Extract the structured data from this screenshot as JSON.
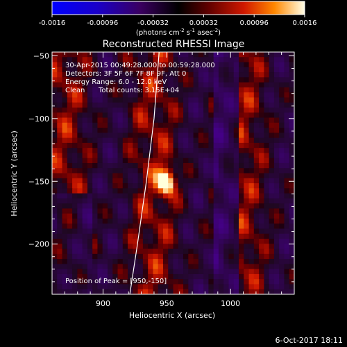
{
  "chart_data": {
    "type": "heatmap",
    "title": "Reconstructed RHESSI Image",
    "xlabel": "Heliocentric X (arcsec)",
    "ylabel": "Heliocentric Y (arcsec)",
    "xlim": [
      860,
      1050
    ],
    "ylim": [
      -240,
      -47
    ],
    "x_ticks": [
      900,
      950,
      1000
    ],
    "y_ticks": [
      -50,
      -100,
      -150,
      -200
    ],
    "colorbar": {
      "label_main": "(photons cm",
      "label_sup1": "-2",
      "label_mid1": " s",
      "label_sup2": "-1",
      "label_mid2": " asec",
      "label_sup3": "-2",
      "label_end": ")",
      "range": [
        -0.0016,
        0.0016
      ],
      "ticks": [
        "-0.0016",
        "-0.00096",
        "-0.00032",
        "0.00032",
        "0.00096",
        "0.0016"
      ]
    },
    "peak": {
      "x": 950,
      "y": -150
    },
    "limb_curve": [
      [
        944,
        -47
      ],
      [
        940,
        -100
      ],
      [
        934,
        -150
      ],
      [
        927,
        -200
      ],
      [
        921,
        -240
      ]
    ],
    "annotations": {
      "time_range": "30-Apr-2015 00:49:28.000 to 00:59:28.000",
      "detectors": "Detectors: 3F 5F 6F 7F 8F 9F, Att 0",
      "energy": "Energy Range: 6.0 - 12.0 keV",
      "method": "Clean",
      "counts": "Total counts: 3.15E+04",
      "peak_label": "Position of Peak = [950,-150]"
    }
  },
  "footer": {
    "date": "6-Oct-2017 18:11"
  }
}
